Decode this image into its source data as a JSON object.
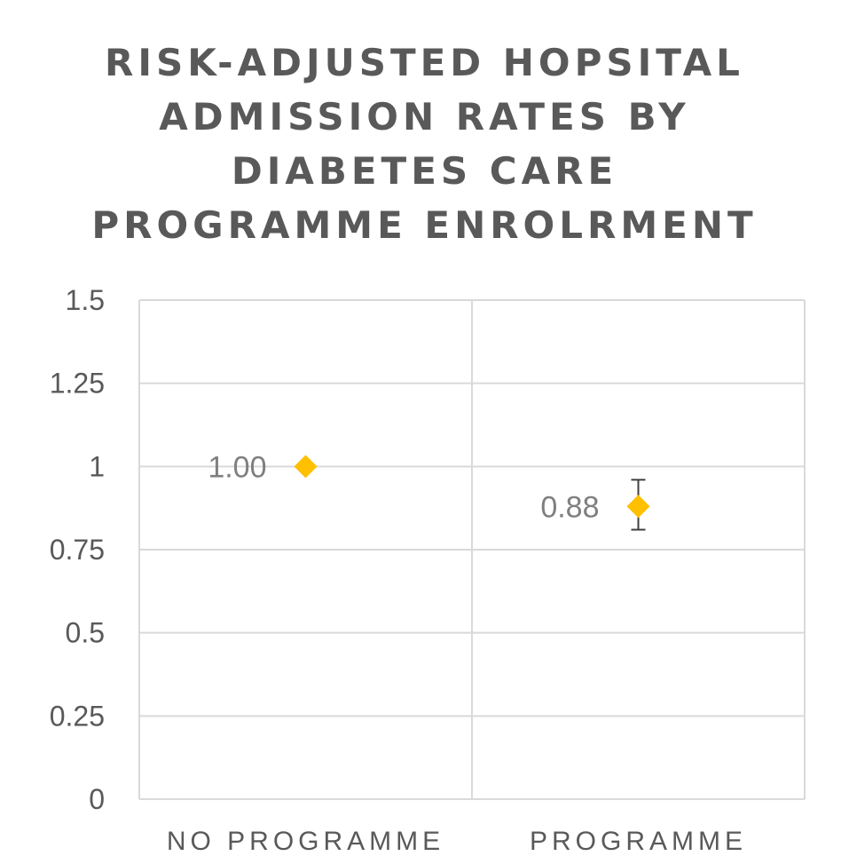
{
  "chart_data": {
    "type": "scatter",
    "title_lines": [
      "RISK-ADJUSTED HOPSITAL",
      "ADMISSION RATES BY",
      "DIABETES CARE",
      "PROGRAMME ENROLRMENT"
    ],
    "categories": [
      "NO PROGRAMME",
      "PROGRAMME"
    ],
    "series": [
      {
        "values": [
          1.0,
          0.88
        ],
        "data_labels": [
          "1.00",
          "0.88"
        ],
        "error_low": [
          null,
          0.81
        ],
        "error_high": [
          null,
          0.96
        ]
      }
    ],
    "yticks": [
      "0",
      "0.25",
      "0.5",
      "0.75",
      "1",
      "1.25",
      "1.5"
    ],
    "ylim": [
      0,
      1.5
    ],
    "grid": true,
    "marker": "diamond",
    "marker_color": "#FFC000",
    "gridline_color": "#D9D9D9",
    "errorbar_color": "#404040"
  }
}
